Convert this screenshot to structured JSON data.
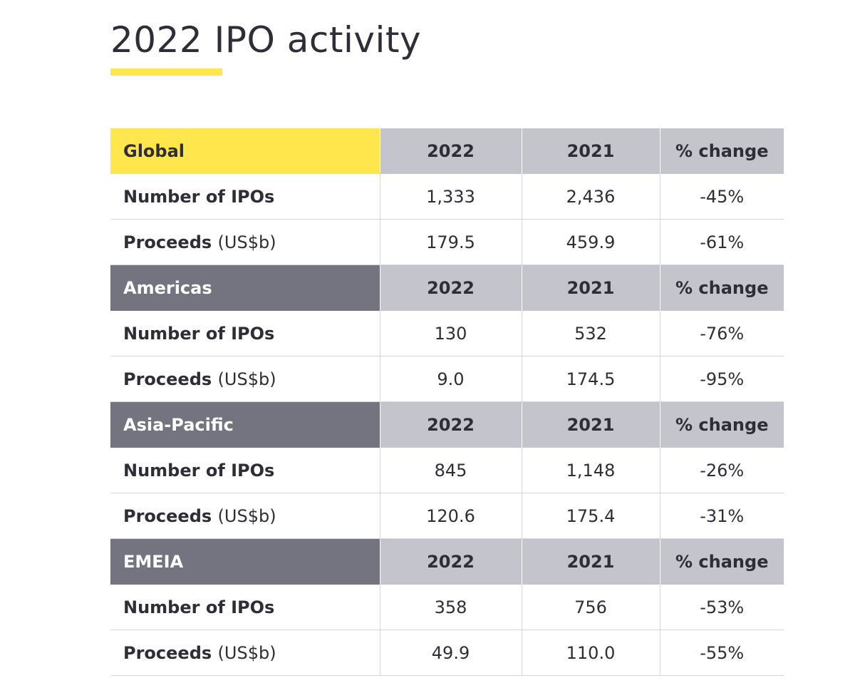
{
  "title": "2022 IPO activity",
  "colors": {
    "accent_yellow": "#ffe64c",
    "header_dark": "#747480",
    "header_light": "#c4c4cd",
    "text": "#2e2e38"
  },
  "columns": {
    "c1": "2022",
    "c2": "2021",
    "c3": "% change"
  },
  "sections": [
    {
      "region": "Global",
      "rows": [
        {
          "label": "Number of IPOs",
          "unit": "",
          "v2022": "1,333",
          "v2021": "2,436",
          "change": "-45%"
        },
        {
          "label": "Proceeds",
          "unit": "(US$b)",
          "v2022": "179.5",
          "v2021": "459.9",
          "change": "-61%"
        }
      ]
    },
    {
      "region": "Americas",
      "rows": [
        {
          "label": "Number of IPOs",
          "unit": "",
          "v2022": "130",
          "v2021": "532",
          "change": "-76%"
        },
        {
          "label": "Proceeds",
          "unit": "(US$b)",
          "v2022": "9.0",
          "v2021": "174.5",
          "change": "-95%"
        }
      ]
    },
    {
      "region": "Asia-Pacific",
      "rows": [
        {
          "label": "Number of IPOs",
          "unit": "",
          "v2022": "845",
          "v2021": "1,148",
          "change": "-26%"
        },
        {
          "label": "Proceeds",
          "unit": "(US$b)",
          "v2022": "120.6",
          "v2021": "175.4",
          "change": "-31%"
        }
      ]
    },
    {
      "region": "EMEIA",
      "rows": [
        {
          "label": "Number of IPOs",
          "unit": "",
          "v2022": "358",
          "v2021": "756",
          "change": "-53%"
        },
        {
          "label": "Proceeds",
          "unit": "(US$b)",
          "v2022": "49.9",
          "v2021": "110.0",
          "change": "-55%"
        }
      ]
    }
  ]
}
